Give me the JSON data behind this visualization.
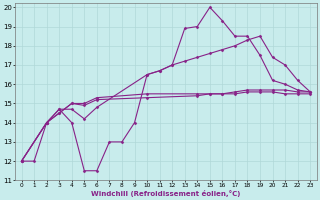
{
  "xlabel": "Windchill (Refroidissement éolien,°C)",
  "xlim": [
    -0.5,
    23.5
  ],
  "ylim": [
    11,
    20.2
  ],
  "yticks": [
    11,
    12,
    13,
    14,
    15,
    16,
    17,
    18,
    19,
    20
  ],
  "xticks": [
    0,
    1,
    2,
    3,
    4,
    5,
    6,
    7,
    8,
    9,
    10,
    11,
    12,
    13,
    14,
    15,
    16,
    17,
    18,
    19,
    20,
    21,
    22,
    23
  ],
  "bg_color": "#c8ecec",
  "grid_color": "#b0d8d8",
  "line_color": "#882288",
  "lines": [
    {
      "x": [
        0,
        1,
        2,
        3,
        4,
        5,
        6,
        7,
        8,
        9,
        10,
        11,
        12,
        13,
        14,
        15,
        16,
        17,
        18,
        19,
        20,
        21,
        22,
        23
      ],
      "y": [
        12,
        12,
        14,
        14.7,
        14,
        11.5,
        11.5,
        13,
        13,
        14,
        16.5,
        16.7,
        17,
        18.9,
        19,
        20,
        19.3,
        18.5,
        18.5,
        17.5,
        16.2,
        16,
        15.7,
        15.6
      ]
    },
    {
      "x": [
        0,
        2,
        3,
        4,
        5,
        6,
        10,
        11,
        12,
        13,
        14,
        15,
        16,
        17,
        18,
        19,
        20,
        21,
        22,
        23
      ],
      "y": [
        12,
        14,
        14.7,
        14.7,
        14.2,
        14.8,
        16.5,
        16.7,
        17.0,
        17.2,
        17.4,
        17.6,
        17.8,
        18.0,
        18.3,
        18.5,
        17.4,
        17.0,
        16.2,
        15.6
      ]
    },
    {
      "x": [
        0,
        2,
        3,
        4,
        5,
        6,
        10,
        14,
        15,
        16,
        17,
        18,
        19,
        20,
        21,
        22,
        23
      ],
      "y": [
        12,
        14,
        14.5,
        15.0,
        14.9,
        15.2,
        15.3,
        15.4,
        15.5,
        15.5,
        15.6,
        15.7,
        15.7,
        15.7,
        15.7,
        15.6,
        15.6
      ]
    },
    {
      "x": [
        0,
        2,
        3,
        4,
        5,
        6,
        10,
        14,
        15,
        16,
        17,
        18,
        19,
        20,
        21,
        22,
        23
      ],
      "y": [
        12,
        14,
        14.5,
        15.0,
        15.0,
        15.3,
        15.5,
        15.5,
        15.5,
        15.5,
        15.5,
        15.6,
        15.6,
        15.6,
        15.5,
        15.5,
        15.5
      ]
    }
  ]
}
